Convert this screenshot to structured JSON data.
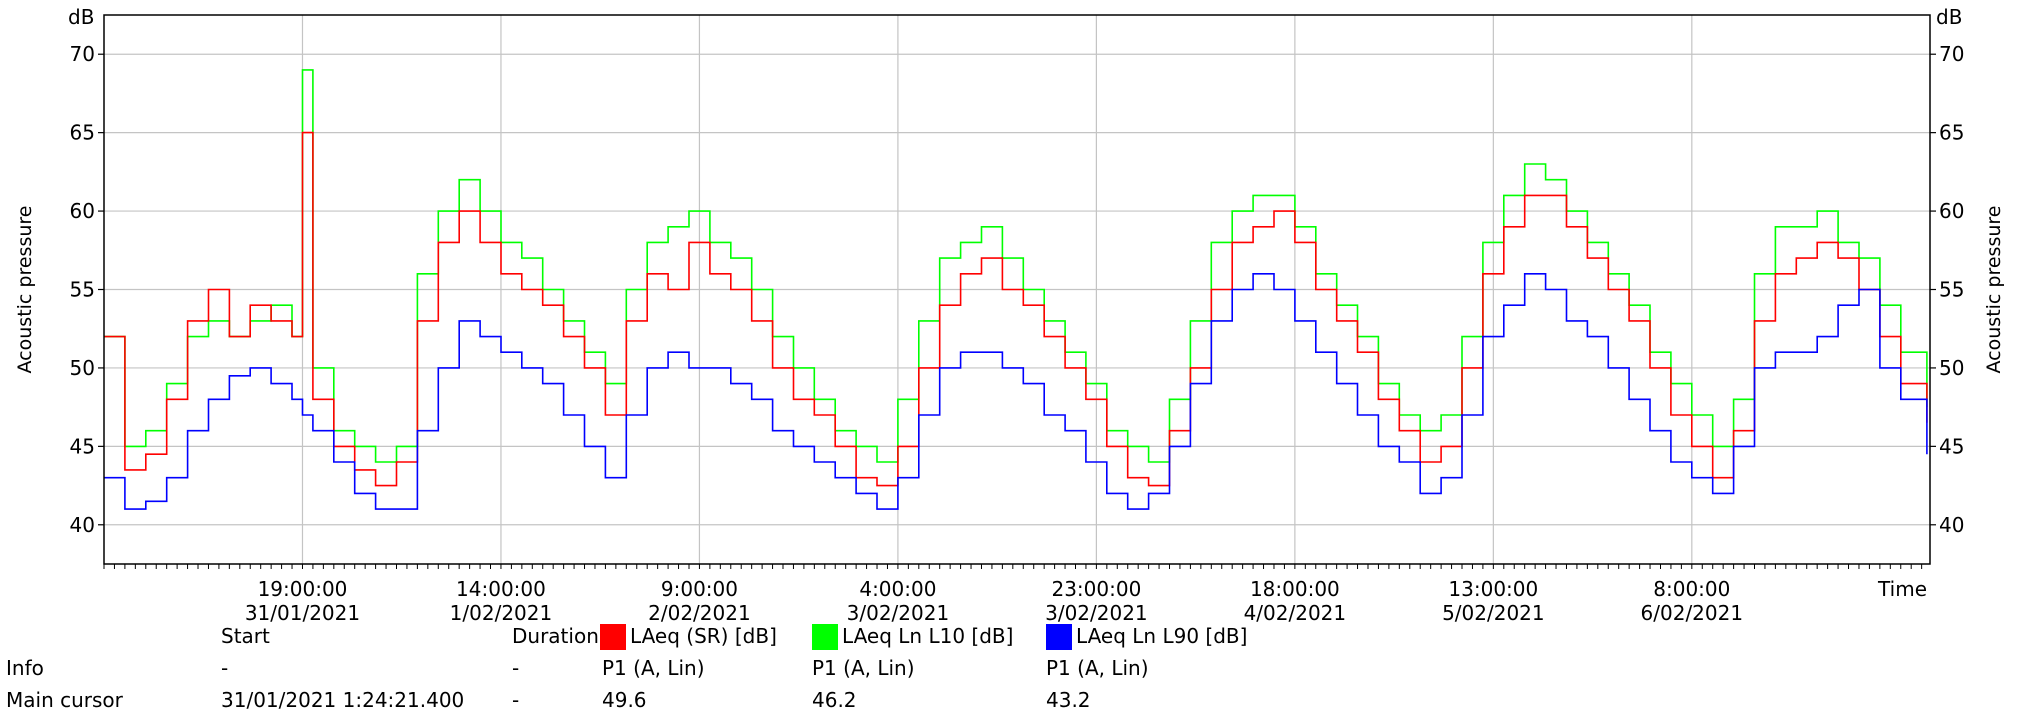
{
  "chart_data": {
    "type": "line",
    "y_unit": "dB",
    "ylabel": "Acoustic pressure",
    "xlabel": "Time",
    "ylim": [
      37.5,
      72.5
    ],
    "yticks": [
      40,
      45,
      50,
      55,
      60,
      65,
      70
    ],
    "grid": true,
    "start_hour": 0,
    "end_hour": 174.8,
    "x_ticks": [
      {
        "hour": 19,
        "time": "19:00:00",
        "date": "31/01/2021"
      },
      {
        "hour": 38,
        "time": "14:00:00",
        "date": "1/02/2021"
      },
      {
        "hour": 57,
        "time": "9:00:00",
        "date": "2/02/2021"
      },
      {
        "hour": 76,
        "time": "4:00:00",
        "date": "3/02/2021"
      },
      {
        "hour": 95,
        "time": "23:00:00",
        "date": "3/02/2021"
      },
      {
        "hour": 114,
        "time": "18:00:00",
        "date": "4/02/2021"
      },
      {
        "hour": 133,
        "time": "13:00:00",
        "date": "5/02/2021"
      },
      {
        "hour": 152,
        "time": "8:00:00",
        "date": "6/02/2021"
      }
    ],
    "series": [
      {
        "name": "LAeq (SR) [dB]",
        "color": "#ff0000",
        "x": [
          0,
          2,
          4,
          6,
          8,
          10,
          12,
          14,
          16,
          18,
          19,
          20,
          22,
          24,
          26,
          28,
          30,
          32,
          34,
          36,
          38,
          40,
          42,
          44,
          46,
          48,
          50,
          52,
          54,
          56,
          58,
          60,
          62,
          64,
          66,
          68,
          70,
          72,
          74,
          76,
          78,
          80,
          82,
          84,
          86,
          88,
          90,
          92,
          94,
          96,
          98,
          100,
          102,
          104,
          106,
          108,
          110,
          112,
          114,
          116,
          118,
          120,
          122,
          124,
          126,
          128,
          130,
          132,
          134,
          136,
          138,
          140,
          142,
          144,
          146,
          148,
          150,
          152,
          154,
          156,
          158,
          160,
          162,
          164,
          166,
          168,
          170,
          172,
          174.5
        ],
        "values": [
          52,
          43.5,
          44.5,
          48,
          53,
          55,
          52,
          54,
          53,
          52,
          65,
          48,
          45,
          43.5,
          42.5,
          44,
          53,
          58,
          60,
          58,
          56,
          55,
          54,
          52,
          50,
          47,
          53,
          56,
          55,
          58,
          56,
          55,
          53,
          50,
          48,
          47,
          45,
          43,
          42.5,
          45,
          50,
          54,
          56,
          57,
          55,
          54,
          52,
          50,
          48,
          45,
          43,
          42.5,
          46,
          50,
          55,
          58,
          59,
          60,
          58,
          55,
          53,
          51,
          48,
          46,
          44,
          45,
          50,
          56,
          59,
          61,
          61,
          59,
          57,
          55,
          53,
          50,
          47,
          45,
          43,
          46,
          53,
          56,
          57,
          58,
          57,
          55,
          52,
          49,
          46.5
        ]
      },
      {
        "name": "LAeq Ln L10 [dB]",
        "color": "#00ff00",
        "x": [
          0,
          2,
          4,
          6,
          8,
          10,
          12,
          14,
          16,
          18,
          19,
          20,
          22,
          24,
          26,
          28,
          30,
          32,
          34,
          36,
          38,
          40,
          42,
          44,
          46,
          48,
          50,
          52,
          54,
          56,
          58,
          60,
          62,
          64,
          66,
          68,
          70,
          72,
          74,
          76,
          78,
          80,
          82,
          84,
          86,
          88,
          90,
          92,
          94,
          96,
          98,
          100,
          102,
          104,
          106,
          108,
          110,
          112,
          114,
          116,
          118,
          120,
          122,
          124,
          126,
          128,
          130,
          132,
          134,
          136,
          138,
          140,
          142,
          144,
          146,
          148,
          150,
          152,
          154,
          156,
          158,
          160,
          162,
          164,
          166,
          168,
          170,
          172,
          174.5
        ],
        "values": [
          52,
          45,
          46,
          49,
          52,
          53,
          52,
          53,
          54,
          52,
          69,
          50,
          46,
          45,
          44,
          45,
          56,
          60,
          62,
          60,
          58,
          57,
          55,
          53,
          51,
          49,
          55,
          58,
          59,
          60,
          58,
          57,
          55,
          52,
          50,
          48,
          46,
          45,
          44,
          48,
          53,
          57,
          58,
          59,
          57,
          55,
          53,
          51,
          49,
          46,
          45,
          44,
          48,
          53,
          58,
          60,
          61,
          61,
          59,
          56,
          54,
          52,
          49,
          47,
          46,
          47,
          52,
          58,
          61,
          63,
          62,
          60,
          58,
          56,
          54,
          51,
          49,
          47,
          45,
          48,
          56,
          59,
          59,
          60,
          58,
          57,
          54,
          51,
          47.5
        ]
      },
      {
        "name": "LAeq Ln L90 [dB]",
        "color": "#0000ff",
        "x": [
          0,
          2,
          4,
          6,
          8,
          10,
          12,
          14,
          16,
          18,
          19,
          20,
          22,
          24,
          26,
          28,
          30,
          32,
          34,
          36,
          38,
          40,
          42,
          44,
          46,
          48,
          50,
          52,
          54,
          56,
          58,
          60,
          62,
          64,
          66,
          68,
          70,
          72,
          74,
          76,
          78,
          80,
          82,
          84,
          86,
          88,
          90,
          92,
          94,
          96,
          98,
          100,
          102,
          104,
          106,
          108,
          110,
          112,
          114,
          116,
          118,
          120,
          122,
          124,
          126,
          128,
          130,
          132,
          134,
          136,
          138,
          140,
          142,
          144,
          146,
          148,
          150,
          152,
          154,
          156,
          158,
          160,
          162,
          164,
          166,
          168,
          170,
          172,
          174.5
        ],
        "values": [
          43,
          41,
          41.5,
          43,
          46,
          48,
          49.5,
          50,
          49,
          48,
          47,
          46,
          44,
          42,
          41,
          41,
          46,
          50,
          53,
          52,
          51,
          50,
          49,
          47,
          45,
          43,
          47,
          50,
          51,
          50,
          50,
          49,
          48,
          46,
          45,
          44,
          43,
          42,
          41,
          43,
          47,
          50,
          51,
          51,
          50,
          49,
          47,
          46,
          44,
          42,
          41,
          42,
          45,
          49,
          53,
          55,
          56,
          55,
          53,
          51,
          49,
          47,
          45,
          44,
          42,
          43,
          47,
          52,
          54,
          56,
          55,
          53,
          52,
          50,
          48,
          46,
          44,
          43,
          42,
          45,
          50,
          51,
          51,
          52,
          54,
          55,
          50,
          48,
          44.5
        ]
      }
    ]
  },
  "info_table": {
    "header": {
      "start": "Start",
      "duration": "Duration"
    },
    "legend_labels": [
      "LAeq (SR) [dB]",
      "LAeq Ln L10 [dB]",
      "LAeq Ln L90 [dB]"
    ],
    "rows": [
      {
        "label": "Info",
        "start": "-",
        "duration": "-",
        "values": [
          "P1 (A, Lin)",
          "P1 (A, Lin)",
          "P1 (A, Lin)"
        ]
      },
      {
        "label": "Main cursor",
        "start": "31/01/2021 1:24:21.400",
        "duration": "-",
        "values": [
          "49.6",
          "46.2",
          "43.2"
        ]
      }
    ]
  }
}
